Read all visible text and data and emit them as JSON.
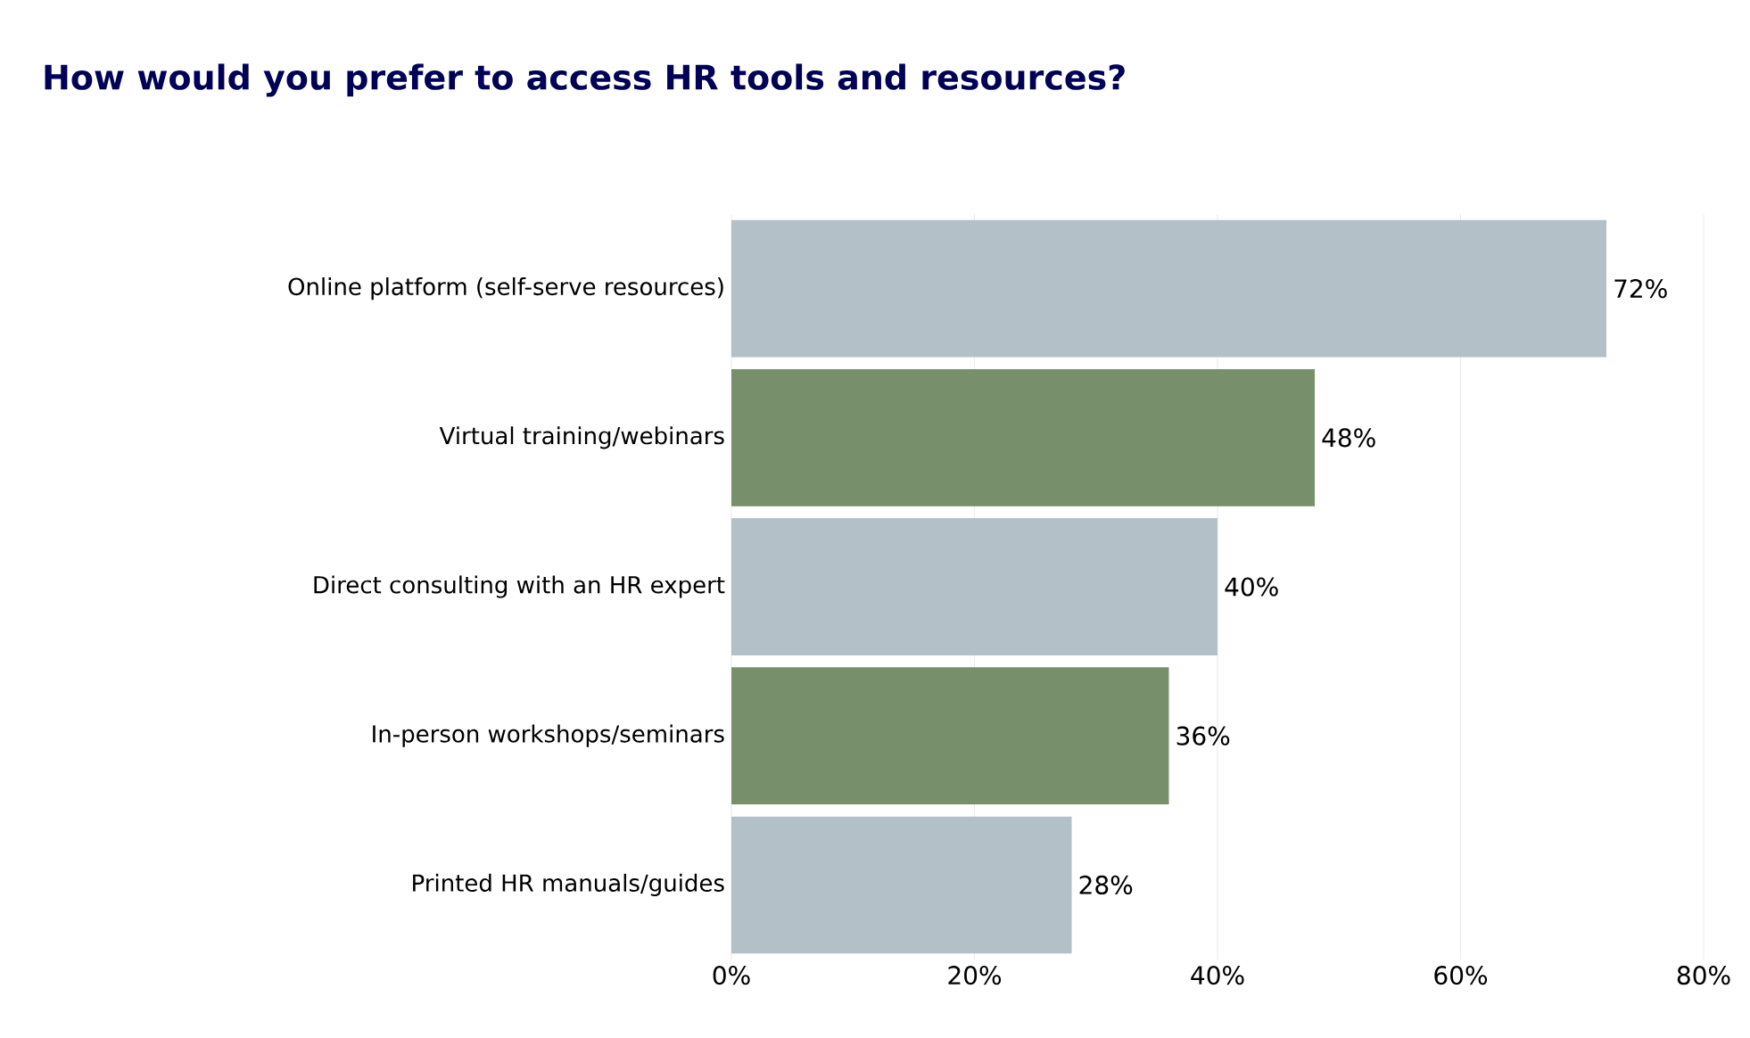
{
  "chart_data": {
    "type": "bar",
    "orientation": "horizontal",
    "title": "How would you prefer to access HR tools and resources?",
    "categories": [
      "Online platform (self-serve resources)",
      "Virtual training/webinars",
      "Direct consulting with an HR expert",
      "In-person workshops/seminars",
      "Printed HR manuals/guides"
    ],
    "values": [
      72,
      48,
      40,
      36,
      28
    ],
    "colors": [
      "#b4c0c8",
      "#788f6b",
      "#b4c0c8",
      "#788f6b",
      "#b4c0c8"
    ],
    "value_labels": [
      "72%",
      "48%",
      "40%",
      "36%",
      "28%"
    ],
    "xlim": [
      0,
      80
    ],
    "xticks": [
      {
        "value": 0,
        "label": "0%"
      },
      {
        "value": 20,
        "label": "20%"
      },
      {
        "value": 40,
        "label": "40%"
      },
      {
        "value": 60,
        "label": "60%"
      },
      {
        "value": 80,
        "label": "80%"
      }
    ],
    "grid": "x"
  }
}
